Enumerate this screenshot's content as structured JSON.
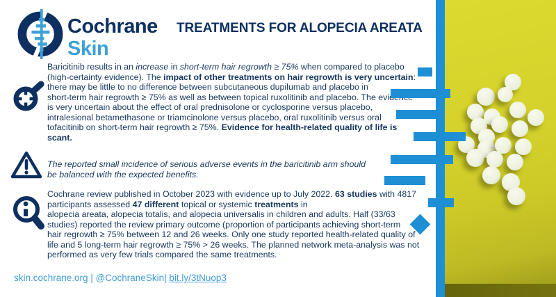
{
  "brand": {
    "org": "Cochrane",
    "group": "Skin"
  },
  "header": {
    "title": "TREATMENTS FOR ALOPECIA AREATA"
  },
  "colors": {
    "brand_navy": "#0d3060",
    "brand_light_blue": "#3fa1d8",
    "accent_blue": "#1e8fd5",
    "body_text_navy": "#17375f",
    "footer_blue": "#3f9cd6",
    "photo_yellow_green": "#d5d32b"
  },
  "icons": {
    "logo": "cochrane-forest-plot-logo",
    "section1": "magnifier-crosshair-icon",
    "section2": "warning-triangle-icon",
    "section3": "info-magnifier-icon"
  },
  "sections": [
    {
      "name": "key-findings",
      "segments": [
        {
          "t": "Baricitinib results in an "
        },
        {
          "t": "increase",
          "i": true
        },
        {
          "t": " in "
        },
        {
          "t": "short-term hair regrowth ≥ 75%",
          "i": true
        },
        {
          "t": " when compared to placebo\n(high-certainty evidence). The "
        },
        {
          "t": "impact of other treatments on hair regrowth is very uncertain",
          "b": true
        },
        {
          "t": ":\nthere may be little to no difference between subcutaneous dupilumab and placebo in\nshort-term hair regrowth ≥ 75% as well as between topical ruxolitinib and placebo. The evidence\nis very uncertain about the effect of oral prednisolone or cyclosporine versus placebo,\nintralesional betamethasone or triamcinolone versus placebo, oral ruxolitinib versus oral\ntofacitinib on short-term hair regrowth ≥ 75%. "
        },
        {
          "t": "Evidence for health-related quality of life is\nscant.",
          "b": true
        }
      ]
    },
    {
      "name": "adverse-events-warning",
      "segments": [
        {
          "t": "The reported small incidence of serious adverse events in the baricitinib arm should\nbe balanced with the expected benefits.",
          "i": true
        }
      ]
    },
    {
      "name": "review-details",
      "segments": [
        {
          "t": "Cochrane review published in October 2023 with evidence up to July 2022. "
        },
        {
          "t": "63 studies",
          "b": true
        },
        {
          "t": " with 4817\nparticipants assessed "
        },
        {
          "t": "47 different",
          "b": true
        },
        {
          "t": " topical or systemic "
        },
        {
          "t": "treatments",
          "b": true
        },
        {
          "t": " in\nalopecia areata, alopecia totalis, and alopecia universalis in children and adults. Half (33/63\nstudies) reported the review primary outcome (proportion of participants achieving short-term\nhair regrowth ≥ 75% between 12 and 26 weeks. Only one study reported health-related quality of\nlife and 5 long-term hair regrowth ≥ 75% > 26 weeks. The planned network meta-analysis was not\nperformed as very few trials compared the same treatments."
        }
      ]
    }
  ],
  "footer": {
    "site": "skin.cochrane.org",
    "sep1": " | ",
    "handle": "@CochraneSkin",
    "sep2": "| ",
    "link": "bit.ly/3tNuop3"
  }
}
